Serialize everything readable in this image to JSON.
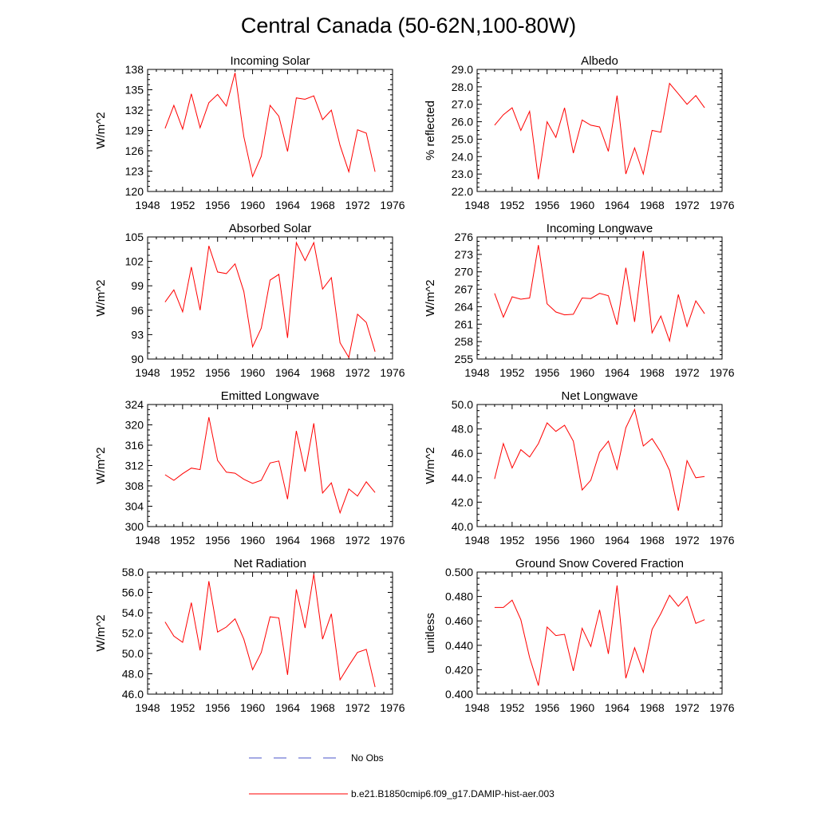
{
  "figure": {
    "title": "Central Canada (50-62N,100-80W)",
    "legend": [
      {
        "label": "No Obs",
        "color": "#4a55c8",
        "style": "dashed"
      },
      {
        "label": "b.e21.B1850cmip6.f09_g17.DAMIP-hist-aer.003",
        "color": "#ff0000",
        "style": "solid"
      }
    ]
  },
  "chart_data": [
    {
      "type": "line",
      "title": "Incoming Solar",
      "ylabel": "W/m^2",
      "xlim": [
        1948,
        1976
      ],
      "xticks": [
        1948,
        1952,
        1956,
        1960,
        1964,
        1968,
        1972,
        1976
      ],
      "ylim": [
        120,
        138
      ],
      "yticks": [
        120,
        123,
        126,
        129,
        132,
        135,
        138
      ],
      "ytick_labels": [
        "120",
        "123",
        "126",
        "129",
        "132",
        "135",
        "138"
      ],
      "series": [
        {
          "color": "#ff0000",
          "x": [
            1950,
            1951,
            1952,
            1953,
            1954,
            1955,
            1956,
            1957,
            1958,
            1959,
            1960,
            1961,
            1962,
            1963,
            1964,
            1965,
            1966,
            1967,
            1968,
            1969,
            1970,
            1971,
            1972,
            1973,
            1974
          ],
          "y": [
            129.3,
            132.7,
            129.2,
            134.4,
            129.4,
            133.1,
            134.3,
            132.6,
            137.5,
            128.1,
            122.2,
            125.2,
            132.7,
            131.1,
            125.9,
            133.8,
            133.6,
            134.1,
            130.6,
            132.0,
            126.8,
            122.9,
            129.1,
            128.6,
            122.9
          ]
        }
      ]
    },
    {
      "type": "line",
      "title": "Albedo",
      "ylabel": "% reflected",
      "xlim": [
        1948,
        1976
      ],
      "xticks": [
        1948,
        1952,
        1956,
        1960,
        1964,
        1968,
        1972,
        1976
      ],
      "ylim": [
        22.0,
        29.0
      ],
      "yticks": [
        22,
        23,
        24,
        25,
        26,
        27,
        28,
        29
      ],
      "ytick_labels": [
        "22.0",
        "23.0",
        "24.0",
        "25.0",
        "26.0",
        "27.0",
        "28.0",
        "29.0"
      ],
      "series": [
        {
          "color": "#ff0000",
          "x": [
            1950,
            1951,
            1952,
            1953,
            1954,
            1955,
            1956,
            1957,
            1958,
            1959,
            1960,
            1961,
            1962,
            1963,
            1964,
            1965,
            1966,
            1967,
            1968,
            1969,
            1970,
            1971,
            1972,
            1973,
            1974
          ],
          "y": [
            25.8,
            26.4,
            26.8,
            25.5,
            26.6,
            22.7,
            26.0,
            25.1,
            26.8,
            24.2,
            26.1,
            25.8,
            25.7,
            24.3,
            27.5,
            23.0,
            24.5,
            23.0,
            25.5,
            25.4,
            28.2,
            27.6,
            27.0,
            27.5,
            26.8
          ]
        }
      ]
    },
    {
      "type": "line",
      "title": "Absorbed Solar",
      "ylabel": "W/m^2",
      "xlim": [
        1948,
        1976
      ],
      "xticks": [
        1948,
        1952,
        1956,
        1960,
        1964,
        1968,
        1972,
        1976
      ],
      "ylim": [
        90,
        105
      ],
      "yticks": [
        90,
        93,
        96,
        99,
        102,
        105
      ],
      "ytick_labels": [
        "90",
        "93",
        "96",
        "99",
        "102",
        "105"
      ],
      "series": [
        {
          "color": "#ff0000",
          "x": [
            1950,
            1951,
            1952,
            1953,
            1954,
            1955,
            1956,
            1957,
            1958,
            1959,
            1960,
            1961,
            1962,
            1963,
            1964,
            1965,
            1966,
            1967,
            1968,
            1969,
            1970,
            1971,
            1972,
            1973,
            1974
          ],
          "y": [
            97.0,
            98.5,
            95.8,
            101.3,
            96.0,
            103.9,
            100.7,
            100.5,
            101.7,
            98.3,
            91.5,
            93.8,
            99.7,
            100.4,
            92.6,
            104.3,
            102.1,
            104.3,
            98.6,
            100.0,
            92.0,
            90.2,
            95.5,
            94.5,
            90.9
          ]
        }
      ]
    },
    {
      "type": "line",
      "title": "Incoming Longwave",
      "ylabel": "W/m^2",
      "xlim": [
        1948,
        1976
      ],
      "xticks": [
        1948,
        1952,
        1956,
        1960,
        1964,
        1968,
        1972,
        1976
      ],
      "ylim": [
        255,
        276
      ],
      "yticks": [
        255,
        258,
        261,
        264,
        267,
        270,
        273,
        276
      ],
      "ytick_labels": [
        "255",
        "258",
        "261",
        "264",
        "267",
        "270",
        "273",
        "276"
      ],
      "series": [
        {
          "color": "#ff0000",
          "x": [
            1950,
            1951,
            1952,
            1953,
            1954,
            1955,
            1956,
            1957,
            1958,
            1959,
            1960,
            1961,
            1962,
            1963,
            1964,
            1965,
            1966,
            1967,
            1968,
            1969,
            1970,
            1971,
            1972,
            1973,
            1974
          ],
          "y": [
            266.3,
            262.2,
            265.7,
            265.3,
            265.5,
            274.6,
            264.5,
            263.1,
            262.6,
            262.7,
            265.5,
            265.4,
            266.3,
            265.9,
            260.9,
            270.7,
            261.4,
            273.6,
            259.5,
            262.4,
            258.1,
            266.1,
            260.6,
            265.0,
            262.8
          ]
        }
      ]
    },
    {
      "type": "line",
      "title": "Emitted Longwave",
      "ylabel": "W/m^2",
      "xlim": [
        1948,
        1976
      ],
      "xticks": [
        1948,
        1952,
        1956,
        1960,
        1964,
        1968,
        1972,
        1976
      ],
      "ylim": [
        300,
        324
      ],
      "yticks": [
        300,
        304,
        308,
        312,
        316,
        320,
        324
      ],
      "ytick_labels": [
        "300",
        "304",
        "308",
        "312",
        "316",
        "320",
        "324"
      ],
      "series": [
        {
          "color": "#ff0000",
          "x": [
            1950,
            1951,
            1952,
            1953,
            1954,
            1955,
            1956,
            1957,
            1958,
            1959,
            1960,
            1961,
            1962,
            1963,
            1964,
            1965,
            1966,
            1967,
            1968,
            1969,
            1970,
            1971,
            1972,
            1973,
            1974
          ],
          "y": [
            310.2,
            309.1,
            310.4,
            311.5,
            311.2,
            321.5,
            313.0,
            310.7,
            310.5,
            309.3,
            308.5,
            309.1,
            312.5,
            312.9,
            305.4,
            318.8,
            310.8,
            320.3,
            306.6,
            308.6,
            302.7,
            307.4,
            306.0,
            308.8,
            306.7
          ]
        }
      ]
    },
    {
      "type": "line",
      "title": "Net Longwave",
      "ylabel": "W/m^2",
      "xlim": [
        1948,
        1976
      ],
      "xticks": [
        1948,
        1952,
        1956,
        1960,
        1964,
        1968,
        1972,
        1976
      ],
      "ylim": [
        40.0,
        50.0
      ],
      "yticks": [
        40,
        42,
        44,
        46,
        48,
        50
      ],
      "ytick_labels": [
        "40.0",
        "42.0",
        "44.0",
        "46.0",
        "48.0",
        "50.0"
      ],
      "series": [
        {
          "color": "#ff0000",
          "x": [
            1950,
            1951,
            1952,
            1953,
            1954,
            1955,
            1956,
            1957,
            1958,
            1959,
            1960,
            1961,
            1962,
            1963,
            1964,
            1965,
            1966,
            1967,
            1968,
            1969,
            1970,
            1971,
            1972,
            1973,
            1974
          ],
          "y": [
            43.9,
            46.8,
            44.8,
            46.3,
            45.7,
            46.8,
            48.5,
            47.8,
            48.3,
            47.0,
            43.0,
            43.8,
            46.1,
            47.0,
            44.7,
            48.1,
            49.6,
            46.6,
            47.2,
            46.1,
            44.6,
            41.3,
            45.4,
            44.0,
            44.1
          ]
        }
      ]
    },
    {
      "type": "line",
      "title": "Net Radiation",
      "ylabel": "W/m^2",
      "xlim": [
        1948,
        1976
      ],
      "xticks": [
        1948,
        1952,
        1956,
        1960,
        1964,
        1968,
        1972,
        1976
      ],
      "ylim": [
        46.0,
        58.0
      ],
      "yticks": [
        46,
        48,
        50,
        52,
        54,
        56,
        58
      ],
      "ytick_labels": [
        "46.0",
        "48.0",
        "50.0",
        "52.0",
        "54.0",
        "56.0",
        "58.0"
      ],
      "series": [
        {
          "color": "#ff0000",
          "x": [
            1950,
            1951,
            1952,
            1953,
            1954,
            1955,
            1956,
            1957,
            1958,
            1959,
            1960,
            1961,
            1962,
            1963,
            1964,
            1965,
            1966,
            1967,
            1968,
            1969,
            1970,
            1971,
            1972,
            1973,
            1974
          ],
          "y": [
            53.1,
            51.7,
            51.1,
            55.0,
            50.3,
            57.1,
            52.1,
            52.6,
            53.4,
            51.4,
            48.4,
            50.1,
            53.6,
            53.5,
            47.9,
            56.3,
            52.5,
            57.8,
            51.4,
            53.9,
            47.4,
            48.8,
            50.1,
            50.4,
            46.7
          ]
        }
      ]
    },
    {
      "type": "line",
      "title": "Ground Snow Covered Fraction",
      "ylabel": "unitless",
      "xlim": [
        1948,
        1976
      ],
      "xticks": [
        1948,
        1952,
        1956,
        1960,
        1964,
        1968,
        1972,
        1976
      ],
      "ylim": [
        0.4,
        0.5
      ],
      "yticks": [
        0.4,
        0.42,
        0.44,
        0.46,
        0.48,
        0.5
      ],
      "ytick_labels": [
        "0.400",
        "0.420",
        "0.440",
        "0.460",
        "0.480",
        "0.500"
      ],
      "series": [
        {
          "color": "#ff0000",
          "x": [
            1950,
            1951,
            1952,
            1953,
            1954,
            1955,
            1956,
            1957,
            1958,
            1959,
            1960,
            1961,
            1962,
            1963,
            1964,
            1965,
            1966,
            1967,
            1968,
            1969,
            1970,
            1971,
            1972,
            1973,
            1974
          ],
          "y": [
            0.471,
            0.471,
            0.477,
            0.461,
            0.43,
            0.407,
            0.455,
            0.448,
            0.449,
            0.419,
            0.454,
            0.439,
            0.469,
            0.433,
            0.489,
            0.413,
            0.438,
            0.418,
            0.453,
            0.466,
            0.481,
            0.472,
            0.48,
            0.458,
            0.461
          ]
        }
      ]
    }
  ]
}
